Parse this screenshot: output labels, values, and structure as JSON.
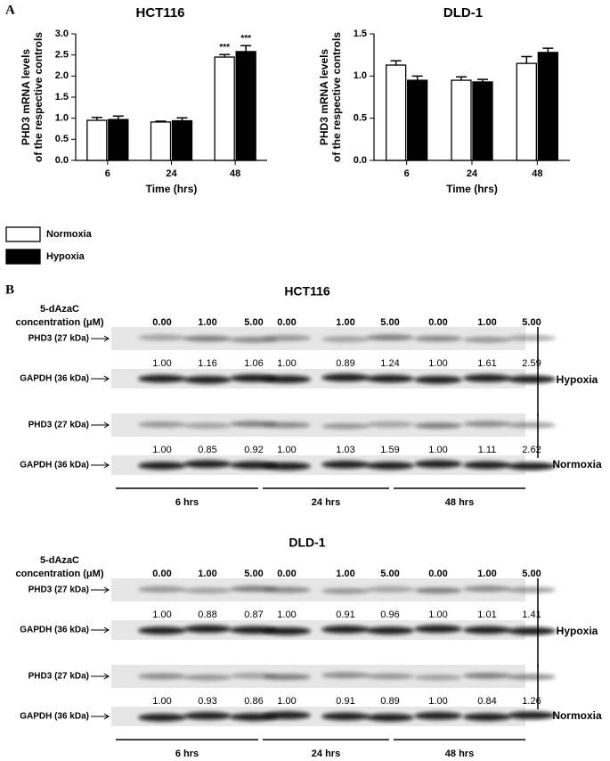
{
  "panel_labels": [
    "A",
    "B"
  ],
  "chart_data": [
    {
      "type": "bar",
      "title": "HCT116",
      "ylabel": [
        "PHD3 mRNA levels",
        "of the respective controls"
      ],
      "xlabel": "Time (hrs)",
      "categories": [
        "6",
        "24",
        "48"
      ],
      "series": [
        {
          "name": "Normoxia",
          "color": "#ffffff",
          "values": [
            0.95,
            0.91,
            2.45
          ],
          "errors": [
            0.07,
            0.02,
            0.06
          ],
          "annotations": [
            null,
            null,
            "***"
          ]
        },
        {
          "name": "Hypoxia",
          "color": "#000000",
          "values": [
            0.97,
            0.94,
            2.58
          ],
          "errors": [
            0.08,
            0.07,
            0.14
          ],
          "annotations": [
            null,
            null,
            "***"
          ]
        }
      ],
      "ylim": [
        0,
        3
      ],
      "yticks": [
        {
          "value": 0,
          "label": "0.0"
        },
        0.5,
        {
          "value": 1,
          "label": "1.0"
        },
        1.5,
        {
          "value": 2,
          "label": "2.0"
        },
        2.5,
        {
          "value": 3,
          "label": "3.0"
        }
      ]
    },
    {
      "type": "bar",
      "title": "DLD-1",
      "ylabel": [
        "PHD3 mRNA levels",
        "of the respective controls"
      ],
      "xlabel": "Time (hrs)",
      "categories": [
        "6",
        "24",
        "48"
      ],
      "series": [
        {
          "name": "Normoxia",
          "color": "#ffffff",
          "values": [
            1.13,
            0.95,
            1.15
          ],
          "errors": [
            0.05,
            0.04,
            0.08
          ]
        },
        {
          "name": "Hypoxia",
          "color": "#000000",
          "values": [
            0.95,
            0.93,
            1.28
          ],
          "errors": [
            0.05,
            0.03,
            0.05
          ]
        }
      ],
      "ylim": [
        0,
        1.5
      ],
      "yticks": [
        {
          "value": 0,
          "label": "0.0"
        },
        0.5,
        {
          "value": 1,
          "label": "1.0"
        },
        1.5
      ]
    }
  ],
  "blots": [
    {
      "title": "HCT116",
      "treatment_label": [
        "5-dAzaC",
        "concentration (μM)"
      ],
      "concentrations": [
        "0.00",
        "1.00",
        "5.00",
        "0.00",
        "1.00",
        "5.00",
        "0.00",
        "1.00",
        "5.00"
      ],
      "panels": [
        {
          "condition": "Hypoxia",
          "target": "PHD3 (27 kDa)",
          "ratios": [
            "1.00",
            "1.16",
            "1.06",
            "1.00",
            "0.89",
            "1.24",
            "1.00",
            "1.61",
            "2.59"
          ],
          "loading": "GAPDH (36 kDa)"
        },
        {
          "condition": "Normoxia",
          "target": "PHD3 (27 kDa)",
          "ratios": [
            "1.00",
            "0.85",
            "0.92",
            "1.00",
            "1.03",
            "1.59",
            "1.00",
            "1.11",
            "2.62"
          ],
          "loading": "GAPDH (36 kDa)"
        }
      ],
      "times": [
        "6 hrs",
        "24 hrs",
        "48 hrs"
      ]
    },
    {
      "title": "DLD-1",
      "treatment_label": [
        "5-dAzaC",
        "concentration (μM)"
      ],
      "concentrations": [
        "0.00",
        "1.00",
        "5.00",
        "0.00",
        "1.00",
        "5.00",
        "0.00",
        "1.00",
        "5.00"
      ],
      "panels": [
        {
          "condition": "Hypoxia",
          "target": "PHD3 (27 kDa)",
          "ratios": [
            "1.00",
            "0.88",
            "0.87",
            "1.00",
            "0.91",
            "0.96",
            "1.00",
            "1.01",
            "1.41"
          ],
          "loading": "GAPDH (36 kDa)"
        },
        {
          "condition": "Normoxia",
          "target": "PHD3 (27 kDa)",
          "ratios": [
            "1.00",
            "0.93",
            "0.86",
            "1.00",
            "0.91",
            "0.89",
            "1.00",
            "0.84",
            "1.26"
          ],
          "loading": "GAPDH (36 kDa)"
        }
      ],
      "times": [
        "6 hrs",
        "24 hrs",
        "48 hrs"
      ]
    }
  ]
}
